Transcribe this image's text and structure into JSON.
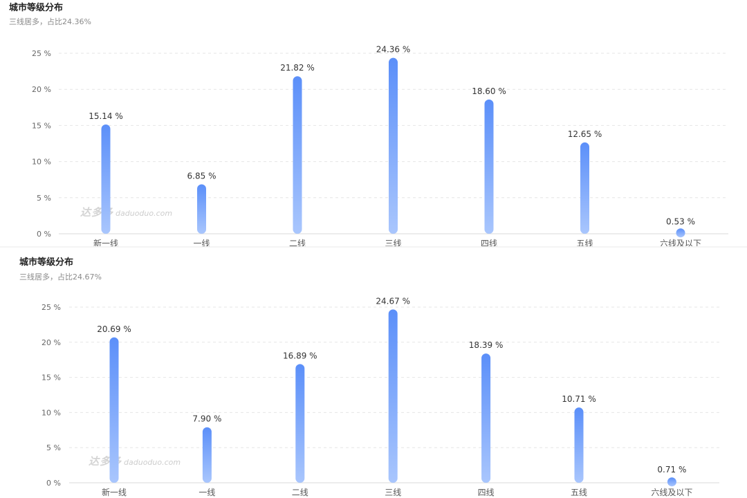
{
  "chart_data": [
    {
      "type": "bar",
      "title": "城市等级分布",
      "subtitle": "三线居多，占比24.36%",
      "categories": [
        "新一线",
        "一线",
        "二线",
        "三线",
        "四线",
        "五线",
        "六线及以下"
      ],
      "values": [
        15.14,
        6.85,
        21.82,
        24.36,
        18.6,
        12.65,
        0.53
      ],
      "value_labels": [
        "15.14 %",
        "6.85 %",
        "21.82 %",
        "24.36 %",
        "18.60 %",
        "12.65 %",
        "0.53 %"
      ],
      "yticks": [
        0,
        5,
        10,
        15,
        20,
        25
      ],
      "ytick_labels": [
        "0 %",
        "5 %",
        "10 %",
        "15 %",
        "20 %",
        "25 %"
      ],
      "ylim": [
        0,
        25
      ],
      "grid": true,
      "bar_color_top": "#5b8ff9",
      "bar_color_bottom": "#a9c6fd",
      "watermark": {
        "logo": "达多多",
        "url": "daduoduo.com"
      }
    },
    {
      "type": "bar",
      "title": "城市等级分布",
      "subtitle": "三线居多，占比24.67%",
      "categories": [
        "新一线",
        "一线",
        "二线",
        "三线",
        "四线",
        "五线",
        "六线及以下"
      ],
      "values": [
        20.69,
        7.9,
        16.89,
        24.67,
        18.39,
        10.71,
        0.71
      ],
      "value_labels": [
        "20.69 %",
        "7.90 %",
        "16.89 %",
        "24.67 %",
        "18.39 %",
        "10.71 %",
        "0.71 %"
      ],
      "yticks": [
        0,
        5,
        10,
        15,
        20,
        25
      ],
      "ytick_labels": [
        "0 %",
        "5 %",
        "10 %",
        "15 %",
        "20 %",
        "25 %"
      ],
      "ylim": [
        0,
        25
      ],
      "grid": true,
      "bar_color_top": "#5b8ff9",
      "bar_color_bottom": "#a9c6fd",
      "watermark": {
        "logo": "达多多",
        "url": "daduoduo.com"
      }
    }
  ]
}
